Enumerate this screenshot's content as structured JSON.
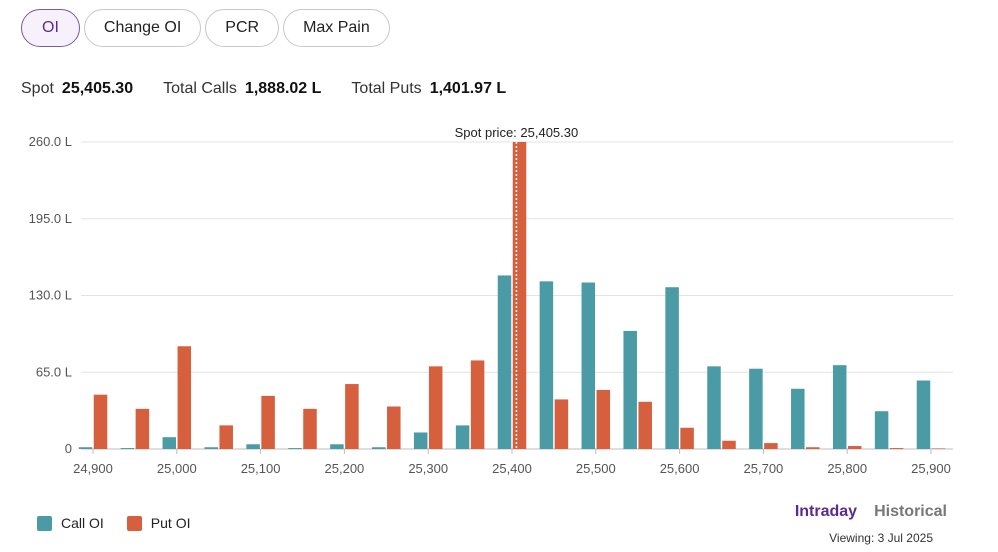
{
  "tabs": [
    {
      "label": "OI",
      "active": true
    },
    {
      "label": "Change OI",
      "active": false
    },
    {
      "label": "PCR",
      "active": false
    },
    {
      "label": "Max Pain",
      "active": false
    }
  ],
  "stats": {
    "spot_label": "Spot",
    "spot_value": "25,405.30",
    "calls_label": "Total Calls",
    "calls_value": "1,888.02 L",
    "puts_label": "Total Puts",
    "puts_value": "1,401.97 L"
  },
  "chart_data": {
    "type": "bar",
    "categories": [
      24900,
      24950,
      25000,
      25050,
      25100,
      25150,
      25200,
      25250,
      25300,
      25350,
      25400,
      25450,
      25500,
      25550,
      25600,
      25650,
      25700,
      25750,
      25800,
      25850,
      25900
    ],
    "x_ticks": [
      "24,900",
      "25,000",
      "25,100",
      "25,200",
      "25,300",
      "25,400",
      "25,500",
      "25,600",
      "25,700",
      "25,800",
      "25,900"
    ],
    "y_ticks": [
      "0",
      "65.0 L",
      "130.0 L",
      "195.0 L",
      "260.0 L"
    ],
    "ylim": [
      0,
      260
    ],
    "series": [
      {
        "name": "Call OI",
        "color": "#4a9ba5",
        "values": [
          1.5,
          0.8,
          10,
          1.5,
          4,
          0.8,
          4,
          1.5,
          14,
          20,
          147,
          142,
          141,
          100,
          137,
          70,
          68,
          51,
          71,
          32,
          58
        ]
      },
      {
        "name": "Put OI",
        "color": "#d65f3d",
        "values": [
          46,
          34,
          87,
          20,
          45,
          34,
          55,
          36,
          70,
          75,
          261,
          42,
          50,
          40,
          18,
          7,
          5,
          1.5,
          2.5,
          0.8,
          0.5
        ]
      }
    ],
    "spot": {
      "label": "Spot price: 25,405.30",
      "value": 25405.3
    },
    "grid": true,
    "legend_position": "bottom-left"
  },
  "legend": [
    {
      "label": "Call OI",
      "color": "#4a9ba5"
    },
    {
      "label": "Put OI",
      "color": "#d65f3d"
    }
  ],
  "view": {
    "intraday": "Intraday",
    "historical": "Historical",
    "viewing": "Viewing: 3 Jul 2025"
  }
}
